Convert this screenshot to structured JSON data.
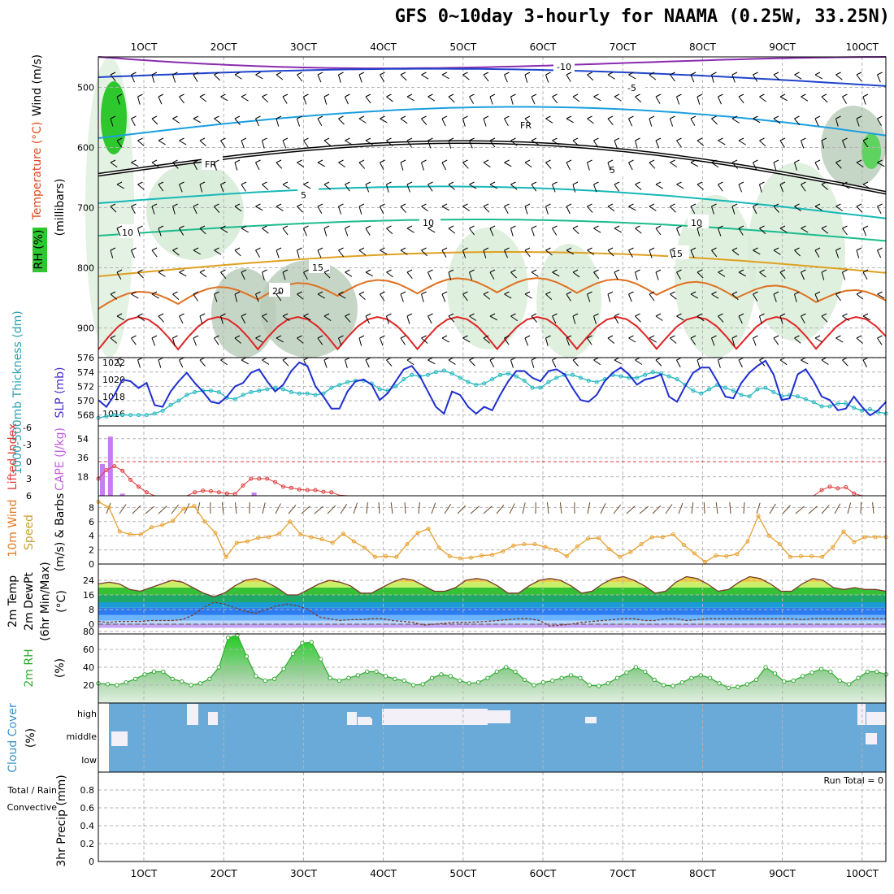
{
  "page": {
    "title": "GFS 0~10day 3-hourly for NAAMA (0.25W, 33.25N)"
  },
  "colors": {
    "grid": "#b4b4b4",
    "temp_blue": "#1f44cc",
    "temp_cyan": "#1aa0e0",
    "temp_teal": "#17b8b8",
    "temp_green": "#1cbc8c",
    "temp_orange": "#e0a020",
    "temp_dorange": "#e07020",
    "temp_red": "#e02424",
    "rh_green": "#2ec82e",
    "slp": "#1f2fd0",
    "thickness": "#22b8c0",
    "lifted": "#e03838",
    "cape": "#c77cf0",
    "wind": "#e8a030",
    "cloud": "#6aaad8",
    "rh2m": "#2faa2f"
  },
  "chart_data": [
    {
      "panel": "upper-air",
      "type": "contour",
      "ylabel": "(millibars)",
      "ylim": [
        450,
        950
      ],
      "yticks": [
        500,
        600,
        700,
        800,
        900
      ],
      "side_labels": {
        "wind": "Wind (m/s)",
        "temp": "Temperature (°C)",
        "rh": "RH (%)"
      },
      "isotherm_labels": [
        "-10",
        "-5",
        "FR",
        "5",
        "10",
        "15",
        "20"
      ],
      "x_dates": [
        "1OCT",
        "2OCT",
        "3OCT",
        "4OCT",
        "5OCT",
        "6OCT",
        "7OCT",
        "8OCT",
        "9OCT",
        "10OCT"
      ]
    },
    {
      "panel": "slp-thickness",
      "type": "line",
      "left_axis": "1000-500mb Thickness (dm)",
      "right_axis": "SLP (mb)",
      "left_ticks": [
        568,
        570,
        572,
        574,
        576
      ],
      "right_ticks": [
        1016,
        1018,
        1020,
        1022
      ],
      "series": [
        {
          "name": "SLP (mb)",
          "values": [
            1017.6,
            1016.8,
            1018.2,
            1020.0,
            1019.8,
            1019.0,
            1019.6,
            1017.0,
            1016.8,
            1018.6,
            1019.8,
            1020.8,
            1019.6,
            1018.6,
            1017.4,
            1017.2,
            1018.0,
            1019.2,
            1019.6,
            1020.8,
            1021.2,
            1019.8,
            1018.6,
            1019.4,
            1021.0,
            1022.0,
            1021.6,
            1019.2,
            1018.0,
            1016.6,
            1016.6,
            1018.6,
            1019.8,
            1020.0,
            1019.4,
            1017.6,
            1018.4,
            1019.8,
            1021.2,
            1021.6,
            1020.4,
            1018.6,
            1016.8,
            1016.0,
            1018.6,
            1018.2,
            1016.8,
            1016.0,
            1016.8,
            1016.4,
            1018.2,
            1019.8,
            1021.0,
            1021.0,
            1020.2,
            1019.8,
            1021.0,
            1021.2,
            1020.6,
            1019.0,
            1017.6,
            1017.4,
            1018.2,
            1019.8,
            1020.8,
            1021.4,
            1020.6,
            1019.4,
            1020.0,
            1020.2,
            1020.6,
            1018.0,
            1017.4,
            1019.2,
            1020.8,
            1021.4,
            1021.4,
            1019.8,
            1018.0,
            1017.8,
            1019.6,
            1020.8,
            1021.6,
            1022.2,
            1020.6,
            1017.6,
            1017.8,
            1020.6,
            1021.2,
            1019.8,
            1018.0,
            1017.6,
            1016.4,
            1016.6,
            1018.0,
            1016.8,
            1015.8,
            1016.4,
            1017.4
          ]
        },
        {
          "name": "Thickness (dm)",
          "values": [
            567.6,
            567.8,
            568.0,
            568.0,
            568.0,
            568.0,
            568.0,
            568.2,
            568.6,
            569.4,
            570.0,
            570.8,
            571.2,
            571.4,
            571.4,
            571.2,
            570.4,
            570.2,
            570.8,
            571.2,
            571.4,
            571.6,
            571.8,
            571.6,
            571.2,
            571.0,
            571.0,
            570.8,
            571.0,
            571.8,
            572.2,
            572.6,
            572.8,
            572.8,
            572.4,
            571.6,
            571.4,
            572.0,
            573.0,
            573.6,
            573.4,
            573.6,
            574.0,
            574.2,
            573.8,
            573.2,
            572.6,
            572.2,
            572.4,
            573.0,
            573.6,
            573.8,
            573.4,
            572.8,
            571.8,
            571.8,
            572.6,
            573.2,
            573.6,
            573.6,
            573.2,
            572.8,
            572.6,
            573.0,
            573.6,
            573.4,
            573.2,
            573.2,
            573.6,
            574.0,
            573.8,
            573.4,
            573.0,
            572.2,
            571.4,
            571.0,
            571.6,
            572.2,
            571.8,
            571.4,
            570.8,
            570.6,
            571.6,
            571.8,
            571.2,
            570.6,
            570.8,
            570.6,
            570.2,
            569.8,
            569.2,
            569.2,
            569.6,
            569.6,
            569.0,
            568.6,
            568.8,
            568.4,
            568.2
          ]
        }
      ]
    },
    {
      "panel": "cape-lifted",
      "type": "bar+line",
      "left_axis": "Lifted Index",
      "left_ticks": [
        "-6",
        "-3",
        "0",
        "3",
        "6"
      ],
      "right_axis": "CAPE (J/kg)",
      "right_ticks": [
        18,
        36,
        54
      ],
      "cape_bars": [
        {
          "day": 0.0,
          "value": 30
        },
        {
          "day": 0.1,
          "value": 56
        },
        {
          "day": 0.25,
          "value": 2
        },
        {
          "day": 1.9,
          "value": 3
        }
      ],
      "lifted_index": [
        3.0,
        1.5,
        0.8,
        1.6,
        3.2,
        4.4,
        5.4,
        6.0,
        6.3,
        6.3,
        6.3,
        6.3,
        5.4,
        5.1,
        5.2,
        5.4,
        5.6,
        5.7,
        4.2,
        3.0,
        3.0,
        3.0,
        3.6,
        4.4,
        4.6,
        4.9,
        5.0,
        5.0,
        5.3,
        5.4,
        5.9,
        6.6,
        7.2,
        7.0,
        7.0,
        7.0,
        7.0,
        7.0,
        7.0,
        7.0,
        7.0,
        7.0,
        7.0,
        7.0,
        7.0,
        7.0,
        7.0,
        7.0,
        7.0,
        7.0,
        7.0,
        7.0,
        7.0,
        7.0,
        7.0,
        7.0,
        7.0,
        7.0,
        7.0,
        7.0,
        7.0,
        7.0,
        7.0,
        7.0,
        7.0,
        7.0,
        7.0,
        7.0,
        7.0,
        7.0,
        7.0,
        7.0,
        7.0,
        7.0,
        7.0,
        7.0,
        7.0,
        6.0,
        6.0,
        7.0,
        7.0,
        7.0,
        7.0,
        7.0,
        7.0,
        7.0,
        7.0,
        7.0,
        7.0,
        7.0,
        5.0,
        4.4,
        4.7,
        4.5,
        5.6,
        6.0,
        7.0,
        7.0,
        7.0
      ]
    },
    {
      "panel": "wind-10m",
      "type": "line",
      "ylabel": "10m Wind Speed (m/s) & Barbs",
      "yticks": [
        0,
        2,
        4,
        6,
        8
      ],
      "ylim": [
        0,
        9
      ],
      "values": [
        8.8,
        8.0,
        4.6,
        4.2,
        4.2,
        5.2,
        5.5,
        6.1,
        7.8,
        8.2,
        6.0,
        4.4,
        1.0,
        3.0,
        3.2,
        3.7,
        3.8,
        4.3,
        6.0,
        4.2,
        3.8,
        3.5,
        3.0,
        4.3,
        3.2,
        2.3,
        1.0,
        1.1,
        1.0,
        2.8,
        4.4,
        5.0,
        2.3,
        1.1,
        0.8,
        0.9,
        1.2,
        1.3,
        1.8,
        2.6,
        2.8,
        2.8,
        2.4,
        2.0,
        1.1,
        2.5,
        3.6,
        3.7,
        2.1,
        1.0,
        1.7,
        2.8,
        3.8,
        3.8,
        4.2,
        2.7,
        1.5,
        0.3,
        1.2,
        1.1,
        1.4,
        3.2,
        6.8,
        4.0,
        2.8,
        1.0,
        1.1,
        1.1,
        1.0,
        2.4,
        4.6,
        3.1,
        3.8,
        3.8,
        3.8
      ]
    },
    {
      "panel": "temp-2m",
      "type": "area+line",
      "ylabel": "2m Temp 2m DewPt (6hr Min/Max) (°C)",
      "yticks": [
        0,
        8,
        16,
        24
      ],
      "ylim": [
        -2,
        28
      ],
      "temperature": [
        22,
        23,
        22,
        19,
        18,
        20,
        22,
        24,
        23,
        20,
        17,
        15,
        17,
        21,
        24,
        25,
        23,
        20,
        16,
        16,
        19,
        22,
        24,
        23,
        21,
        17,
        17,
        20,
        23,
        25,
        24,
        21,
        18,
        18,
        20,
        24,
        25,
        24,
        21,
        17,
        17,
        21,
        24,
        25,
        24,
        21,
        17,
        18,
        22,
        25,
        26,
        24,
        21,
        17,
        18,
        23,
        26,
        25,
        22,
        18,
        19,
        23,
        26,
        25,
        22,
        18,
        18,
        22,
        25,
        24,
        20,
        19,
        20,
        19,
        19,
        18
      ],
      "dewpoint": [
        1.5,
        1.0,
        1.5,
        1.5,
        1.5,
        2.0,
        2.0,
        2.0,
        2.5,
        5,
        9,
        12,
        11,
        9,
        7,
        6,
        8,
        10,
        11,
        10,
        8,
        4,
        3,
        2,
        2.5,
        2.5,
        3,
        3,
        2,
        1.5,
        1,
        -0.5,
        0,
        0.5,
        1,
        1,
        1.2,
        1.5,
        2,
        2.5,
        3,
        3,
        2,
        -1,
        -0.5,
        0,
        1,
        1.5,
        2,
        2.5,
        3,
        3,
        2,
        2,
        3,
        3,
        2,
        2.5,
        3,
        3,
        3,
        3,
        3,
        3,
        3,
        3,
        3,
        2.5,
        3,
        3,
        3,
        3,
        3,
        3,
        3,
        3
      ]
    },
    {
      "panel": "rh-2m",
      "type": "area+line",
      "ylabel": "2m RH (%)",
      "yticks": [
        20,
        40,
        60,
        80
      ],
      "ylim": [
        0,
        85
      ],
      "values": [
        22,
        21,
        20,
        23,
        27,
        32,
        35,
        35,
        27,
        24,
        20,
        22,
        27,
        40,
        73,
        76,
        52,
        30,
        25,
        27,
        38,
        55,
        67,
        68,
        49,
        28,
        25,
        28,
        31,
        35,
        35,
        30,
        27,
        25,
        20,
        21,
        28,
        32,
        30,
        25,
        22,
        23,
        28,
        35,
        40,
        35,
        26,
        20,
        23,
        25,
        28,
        31,
        28,
        20,
        19,
        22,
        28,
        34,
        40,
        35,
        26,
        20,
        19,
        23,
        28,
        31,
        28,
        22,
        17,
        18,
        21,
        26,
        40,
        33,
        24,
        25,
        30,
        34,
        38,
        35,
        25,
        21,
        28,
        35,
        35,
        32
      ]
    },
    {
      "panel": "cloud-cover",
      "type": "heatmap",
      "ylabel": "Cloud Cover (%)",
      "levels": [
        "high",
        "middle",
        "low"
      ]
    },
    {
      "panel": "precip",
      "type": "bar",
      "ylabel": "3hr Precip (mm)",
      "left_note": "Total / Rain",
      "left_note2": "Convective",
      "yticks": [
        "0",
        "0.2",
        "0.4",
        "0.6",
        "0.8"
      ],
      "ylim": [
        0,
        0.95
      ],
      "run_total": "Run Total = 0",
      "values": [],
      "x_dates": [
        "1OCT",
        "2OCT",
        "3OCT",
        "4OCT",
        "5OCT",
        "6OCT",
        "7OCT",
        "8OCT",
        "9OCT",
        "10OCT"
      ]
    }
  ]
}
